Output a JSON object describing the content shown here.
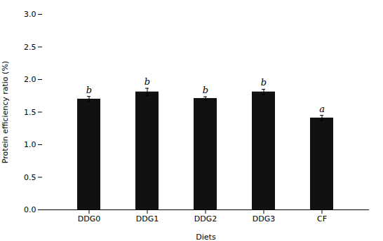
{
  "chart_data": {
    "type": "bar",
    "categories": [
      "DDG0",
      "DDG1",
      "DDG2",
      "DDG3",
      "CF"
    ],
    "values": [
      1.7,
      1.81,
      1.71,
      1.81,
      1.41
    ],
    "errors": [
      0.04,
      0.055,
      0.025,
      0.04,
      0.04
    ],
    "letters": [
      "b",
      "b",
      "b",
      "b",
      "a"
    ],
    "color": "#111111",
    "xlabel": "Diets",
    "ylabel": "Protein efficiency ratio (%)",
    "ylim": [
      0,
      3.0
    ],
    "yticks": [
      0,
      0.5,
      1.0,
      1.5,
      2.0,
      2.5,
      3.0
    ],
    "grid": false
  }
}
